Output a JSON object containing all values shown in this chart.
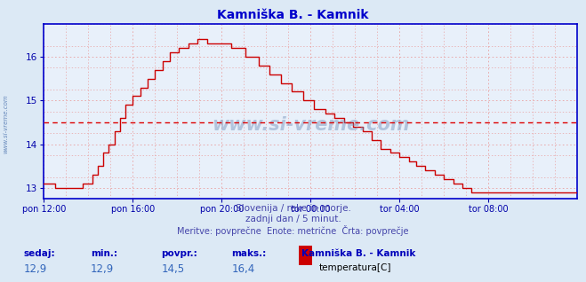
{
  "title": "Kamniška B. - Kamnik",
  "bg_color": "#dce9f5",
  "plot_bg_color": "#e8f0fa",
  "line_color": "#cc0000",
  "avg_line_color": "#dd0000",
  "avg_value": 14.5,
  "y_min": 12.75,
  "y_max": 16.65,
  "y_ticks": [
    13,
    14,
    15,
    16
  ],
  "grid_color": "#c8d8f0",
  "grid_dot_color": "#e8a0a0",
  "x_labels": [
    "pon 12:00",
    "pon 16:00",
    "pon 20:00",
    "tor 00:00",
    "tor 04:00",
    "tor 08:00"
  ],
  "x_tick_positions": [
    0,
    48,
    96,
    144,
    192,
    240
  ],
  "total_points": 289,
  "subtitle_line1": "Slovenija / reke in morje.",
  "subtitle_line2": "zadnji dan / 5 minut.",
  "subtitle_line3": "Meritve: povprečne  Enote: metrične  Črta: povprečje",
  "footer_labels": [
    "sedaj:",
    "min.:",
    "povpr.:",
    "maks.:"
  ],
  "footer_values": [
    "12,9",
    "12,9",
    "14,5",
    "16,4"
  ],
  "legend_title": "Kamniška B. - Kamnik",
  "legend_label": "temperatura[C]",
  "legend_color": "#cc0000",
  "watermark": "www.si-vreme.com",
  "left_watermark": "www.si-vreme.com",
  "title_color": "#0000cc",
  "subtitle_color": "#4444aa",
  "footer_label_color": "#0000bb",
  "footer_value_color": "#3366bb",
  "spine_color": "#0000cc",
  "tick_color": "#0000aa"
}
